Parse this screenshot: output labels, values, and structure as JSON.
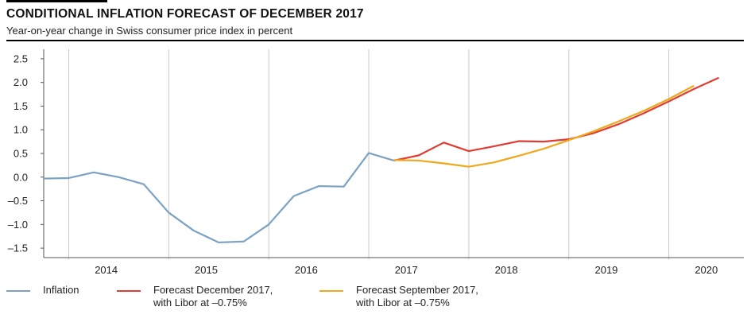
{
  "header": {
    "title": "CONDITIONAL INFLATION FORECAST OF DECEMBER 2017",
    "subtitle": "Year-on-year change in Swiss consumer price index in percent"
  },
  "colors": {
    "inflation": "#7ba2c3",
    "forecast_dec_2017": "#e03c31",
    "forecast_sep_2017": "#f0a81c",
    "grid": "#c8c8c8",
    "axis": "#555555"
  },
  "legend": {
    "inflation": {
      "line1": "Inflation",
      "line2": ""
    },
    "forecast_dec": {
      "line1": "Forecast December 2017,",
      "line2": "with Libor at –0.75%"
    },
    "forecast_sep": {
      "line1": "Forecast September 2017,",
      "line2": "with Libor at –0.75%"
    }
  },
  "chart_data": {
    "type": "line",
    "title": "CONDITIONAL INFLATION FORECAST OF DECEMBER 2017",
    "subtitle": "Year-on-year change in Swiss consumer price index in percent",
    "x_unit": "quarter",
    "xlim": [
      "2013 Q4",
      "2020 Q4"
    ],
    "year_labels": [
      "2014",
      "2015",
      "2016",
      "2017",
      "2018",
      "2019",
      "2020"
    ],
    "ylim": [
      -1.7,
      2.7
    ],
    "yticks": [
      2.5,
      2.0,
      1.5,
      1.0,
      0.5,
      0.0,
      -0.5,
      -1.0,
      -1.5
    ],
    "ytick_labels": [
      "2.5",
      "2.0",
      "1.5",
      "1.0",
      "0.5",
      "0.0",
      "–0.5",
      "–1.0",
      "–1.5"
    ],
    "grid": "vertical lines at year boundaries",
    "legend_position": "bottom",
    "series": [
      {
        "name": "Inflation",
        "color": "#7ba2c3",
        "points": [
          [
            "2013 Q4",
            -0.03
          ],
          [
            "2014 Q1",
            -0.02
          ],
          [
            "2014 Q2",
            0.1
          ],
          [
            "2014 Q3",
            0.0
          ],
          [
            "2014 Q4",
            -0.15
          ],
          [
            "2015 Q1",
            -0.75
          ],
          [
            "2015 Q2",
            -1.13
          ],
          [
            "2015 Q3",
            -1.38
          ],
          [
            "2015 Q4",
            -1.36
          ],
          [
            "2016 Q1",
            -1.0
          ],
          [
            "2016 Q2",
            -0.4
          ],
          [
            "2016 Q3",
            -0.19
          ],
          [
            "2016 Q4",
            -0.2
          ],
          [
            "2017 Q1",
            0.51
          ],
          [
            "2017 Q2",
            0.35
          ]
        ]
      },
      {
        "name": "Forecast December 2017, with Libor at –0.75%",
        "color": "#e03c31",
        "points": [
          [
            "2017 Q2",
            0.35
          ],
          [
            "2017 Q3",
            0.46
          ],
          [
            "2017 Q4",
            0.73
          ],
          [
            "2018 Q1",
            0.55
          ],
          [
            "2018 Q2",
            0.65
          ],
          [
            "2018 Q3",
            0.76
          ],
          [
            "2018 Q4",
            0.75
          ],
          [
            "2019 Q1",
            0.8
          ],
          [
            "2019 Q2",
            0.93
          ],
          [
            "2019 Q3",
            1.12
          ],
          [
            "2019 Q4",
            1.35
          ],
          [
            "2020 Q1",
            1.6
          ],
          [
            "2020 Q2",
            1.86
          ],
          [
            "2020 Q3",
            2.1
          ]
        ]
      },
      {
        "name": "Forecast September 2017, with Libor at –0.75%",
        "color": "#f0a81c",
        "points": [
          [
            "2017 Q2",
            0.36
          ],
          [
            "2017 Q3",
            0.35
          ],
          [
            "2017 Q4",
            0.29
          ],
          [
            "2018 Q1",
            0.22
          ],
          [
            "2018 Q2",
            0.31
          ],
          [
            "2018 Q3",
            0.45
          ],
          [
            "2018 Q4",
            0.6
          ],
          [
            "2019 Q1",
            0.78
          ],
          [
            "2019 Q2",
            0.97
          ],
          [
            "2019 Q3",
            1.18
          ],
          [
            "2019 Q4",
            1.4
          ],
          [
            "2020 Q1",
            1.65
          ],
          [
            "2020 Q2",
            1.93
          ]
        ]
      }
    ]
  }
}
